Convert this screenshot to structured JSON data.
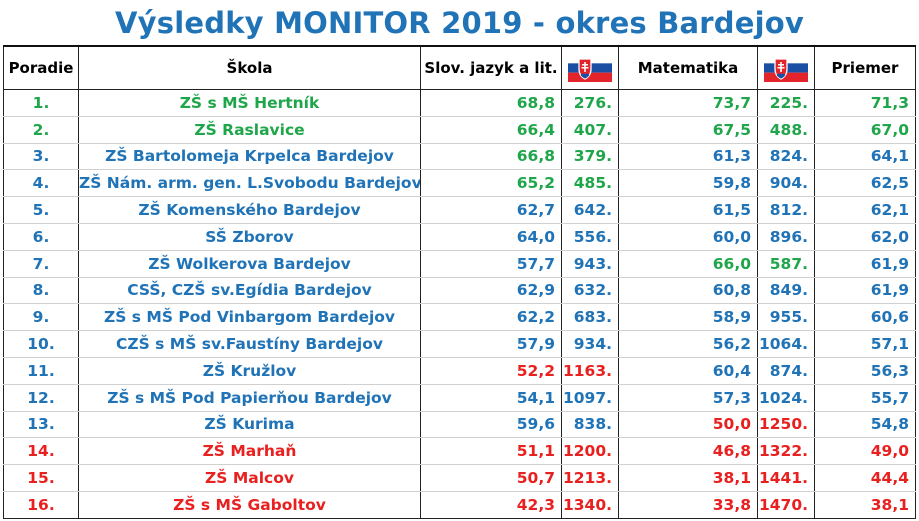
{
  "title": "Výsledky MONITOR 2019 - okres Bardejov",
  "headers": {
    "rank": "Poradie",
    "school": "Škola",
    "slovak": "Slov. jazyk a lit.",
    "math": "Matematika",
    "average": "Priemer"
  },
  "flag_icon": "slovakia-flag-icon",
  "colors": {
    "green": "#1fa64a",
    "blue": "#1f73b6",
    "red": "#e8201f",
    "title": "#1f73b6"
  },
  "rows": [
    {
      "rank": "1.",
      "school": "ZŠ s MŠ Hertník",
      "sk": "68,8",
      "sk_rank": "276.",
      "mat": "73,7",
      "mat_rank": "225.",
      "avg": "71,3",
      "c": [
        "g",
        "g",
        "g",
        "g",
        "g",
        "g",
        "g"
      ]
    },
    {
      "rank": "2.",
      "school": "ZŠ Raslavice",
      "sk": "66,4",
      "sk_rank": "407.",
      "mat": "67,5",
      "mat_rank": "488.",
      "avg": "67,0",
      "c": [
        "g",
        "g",
        "g",
        "g",
        "g",
        "g",
        "g"
      ]
    },
    {
      "rank": "3.",
      "school": "ZŠ Bartolomeja Krpelca Bardejov",
      "sk": "66,8",
      "sk_rank": "379.",
      "mat": "61,3",
      "mat_rank": "824.",
      "avg": "64,1",
      "c": [
        "b",
        "b",
        "g",
        "g",
        "b",
        "b",
        "b"
      ]
    },
    {
      "rank": "4.",
      "school": "ZŠ Nám. arm. gen. L.Svobodu Bardejov",
      "sk": "65,2",
      "sk_rank": "485.",
      "mat": "59,8",
      "mat_rank": "904.",
      "avg": "62,5",
      "c": [
        "b",
        "b",
        "g",
        "g",
        "b",
        "b",
        "b"
      ]
    },
    {
      "rank": "5.",
      "school": "ZŠ Komenského Bardejov",
      "sk": "62,7",
      "sk_rank": "642.",
      "mat": "61,5",
      "mat_rank": "812.",
      "avg": "62,1",
      "c": [
        "b",
        "b",
        "b",
        "b",
        "b",
        "b",
        "b"
      ]
    },
    {
      "rank": "6.",
      "school": "SŠ Zborov",
      "sk": "64,0",
      "sk_rank": "556.",
      "mat": "60,0",
      "mat_rank": "896.",
      "avg": "62,0",
      "c": [
        "b",
        "b",
        "b",
        "b",
        "b",
        "b",
        "b"
      ]
    },
    {
      "rank": "7.",
      "school": "ZŠ Wolkerova Bardejov",
      "sk": "57,7",
      "sk_rank": "943.",
      "mat": "66,0",
      "mat_rank": "587.",
      "avg": "61,9",
      "c": [
        "b",
        "b",
        "b",
        "b",
        "g",
        "g",
        "b"
      ]
    },
    {
      "rank": "8.",
      "school": "CSŠ, CZŠ sv.Egídia Bardejov",
      "sk": "62,9",
      "sk_rank": "632.",
      "mat": "60,8",
      "mat_rank": "849.",
      "avg": "61,9",
      "c": [
        "b",
        "b",
        "b",
        "b",
        "b",
        "b",
        "b"
      ]
    },
    {
      "rank": "9.",
      "school": "ZŠ s MŠ Pod Vinbargom Bardejov",
      "sk": "62,2",
      "sk_rank": "683.",
      "mat": "58,9",
      "mat_rank": "955.",
      "avg": "60,6",
      "c": [
        "b",
        "b",
        "b",
        "b",
        "b",
        "b",
        "b"
      ]
    },
    {
      "rank": "10.",
      "school": "CZŠ s MŠ sv.Faustíny Bardejov",
      "sk": "57,9",
      "sk_rank": "934.",
      "mat": "56,2",
      "mat_rank": "1064.",
      "avg": "57,1",
      "c": [
        "b",
        "b",
        "b",
        "b",
        "b",
        "b",
        "b"
      ]
    },
    {
      "rank": "11.",
      "school": "ZŠ Kružlov",
      "sk": "52,2",
      "sk_rank": "1163.",
      "mat": "60,4",
      "mat_rank": "874.",
      "avg": "56,3",
      "c": [
        "b",
        "b",
        "red",
        "red",
        "b",
        "b",
        "b"
      ]
    },
    {
      "rank": "12.",
      "school": "ZŠ s MŠ Pod Papierňou Bardejov",
      "sk": "54,1",
      "sk_rank": "1097.",
      "mat": "57,3",
      "mat_rank": "1024.",
      "avg": "55,7",
      "c": [
        "b",
        "b",
        "b",
        "b",
        "b",
        "b",
        "b"
      ]
    },
    {
      "rank": "13.",
      "school": "ZŠ Kurima",
      "sk": "59,6",
      "sk_rank": "838.",
      "mat": "50,0",
      "mat_rank": "1250.",
      "avg": "54,8",
      "c": [
        "b",
        "b",
        "b",
        "b",
        "red",
        "red",
        "b"
      ]
    },
    {
      "rank": "14.",
      "school": "ZŠ Marhaň",
      "sk": "51,1",
      "sk_rank": "1200.",
      "mat": "46,8",
      "mat_rank": "1322.",
      "avg": "49,0",
      "c": [
        "red",
        "red",
        "red",
        "red",
        "red",
        "red",
        "red"
      ]
    },
    {
      "rank": "15.",
      "school": "ZŠ Malcov",
      "sk": "50,7",
      "sk_rank": "1213.",
      "mat": "38,1",
      "mat_rank": "1441.",
      "avg": "44,4",
      "c": [
        "red",
        "red",
        "red",
        "red",
        "red",
        "red",
        "red"
      ]
    },
    {
      "rank": "16.",
      "school": "ZŠ s MŠ Gaboltov",
      "sk": "42,3",
      "sk_rank": "1340.",
      "mat": "33,8",
      "mat_rank": "1470.",
      "avg": "38,1",
      "c": [
        "red",
        "red",
        "red",
        "red",
        "red",
        "red",
        "red"
      ]
    }
  ]
}
